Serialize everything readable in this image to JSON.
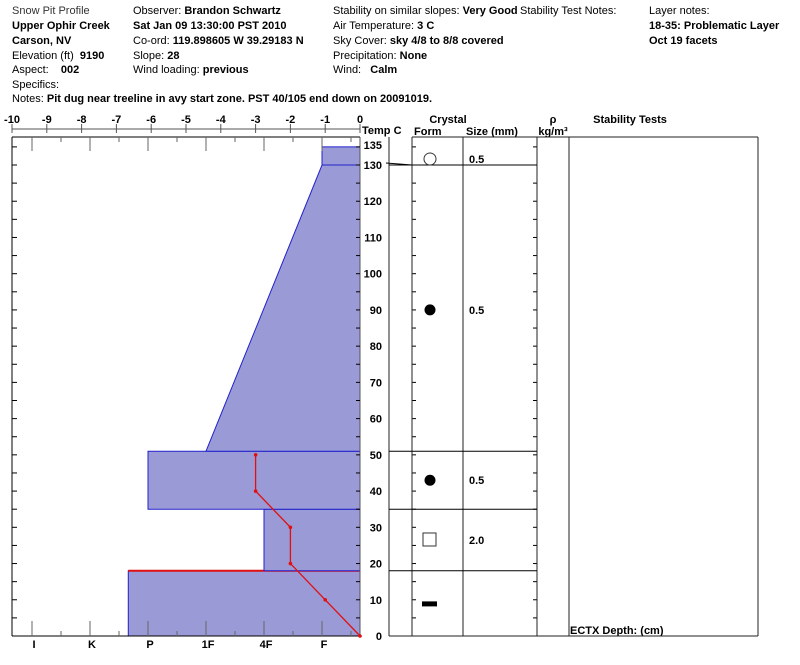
{
  "header": {
    "title": "Snow Pit Profile",
    "location": "Upper Ophir Creek",
    "region": "Carson, NV",
    "elevation_label": "Elevation (ft)",
    "elevation": "9190",
    "aspect_label": "Aspect:",
    "aspect": "002",
    "specifics_label": "Specifics:",
    "notes_label": "Notes:",
    "notes": "Pit dug near treeline in avy start zone.  PST 40/105 end down on 20091019.",
    "observer_label": "Observer:",
    "observer": "Brandon Schwartz",
    "datetime": "Sat Jan 09 13:30:00 PST 2010",
    "coord_label": "Co-ord:",
    "coord": "119.898605 W 39.29183 N",
    "slope_label": "Slope:",
    "slope": "28",
    "wind_loading_label": "Wind loading:",
    "wind_loading": "previous",
    "stability_label": "Stability on similar slopes:",
    "stability": "Very Good",
    "air_temp_label": "Air Temperature:",
    "air_temp": "3 C",
    "sky_label": "Sky Cover:",
    "sky": "sky 4/8 to 8/8 covered",
    "precip_label": "Precipitation:",
    "precip": "None",
    "wind_label": "Wind:",
    "wind": "Calm",
    "stability_test_notes_label": "Stability Test Notes:",
    "layer_notes_label": "Layer notes:",
    "layer_notes": [
      "18-35: Problematic Layer",
      "Oct 19 facets"
    ]
  },
  "columns": {
    "temp": "Temp C",
    "crystal": "Crystal",
    "form": "Form",
    "size": "Size (mm)",
    "rho": "ρ",
    "density_unit": "kg/m³",
    "stability_tests": "Stability Tests",
    "stability_footer": "ECTX   Depth: (cm)"
  },
  "chart_data": {
    "type": "snow-profile",
    "temp_axis": {
      "label": "Temp C",
      "range": [
        -10,
        0
      ],
      "ticks": [
        "-10",
        "-9",
        "-8",
        "-7",
        "-6",
        "-5",
        "-4",
        "-3",
        "-2",
        "-1",
        "0"
      ]
    },
    "depth_axis": {
      "range": [
        0,
        135
      ],
      "ticks": [
        "0",
        "10",
        "20",
        "30",
        "40",
        "50",
        "60",
        "70",
        "80",
        "90",
        "100",
        "110",
        "120",
        "130",
        "135"
      ]
    },
    "hardness_axis": {
      "ticks": [
        "I",
        "K",
        "P",
        "1F",
        "4F",
        "F"
      ]
    },
    "layers": [
      {
        "bottom": 0,
        "top": 18,
        "hardness": "P+",
        "form": "crust",
        "size": "",
        "highlight": true
      },
      {
        "bottom": 18,
        "top": 35,
        "hardness": "4F",
        "form": "faceted",
        "size": "2.0"
      },
      {
        "bottom": 35,
        "top": 51,
        "hardness": "P",
        "form": "rounded",
        "size": "0.5"
      },
      {
        "bottom": 51,
        "top": 130,
        "hardness_bottom": "1F",
        "hardness_top": "F",
        "form": "rounded",
        "size": "0.5"
      },
      {
        "bottom": 130,
        "top": 135,
        "hardness": "F",
        "form": "precipitation",
        "size": "0.5"
      }
    ],
    "temperature_profile": [
      {
        "depth": 0,
        "temp": 0
      },
      {
        "depth": 10,
        "temp": -1
      },
      {
        "depth": 20,
        "temp": -2
      },
      {
        "depth": 30,
        "temp": -2
      },
      {
        "depth": 40,
        "temp": -3
      },
      {
        "depth": 50,
        "temp": -3
      }
    ],
    "colors": {
      "layer_fill": "#9a9ad6",
      "layer_edge": "#2222cc",
      "temp_line": "#e01010",
      "problem_line": "#e01010"
    }
  }
}
